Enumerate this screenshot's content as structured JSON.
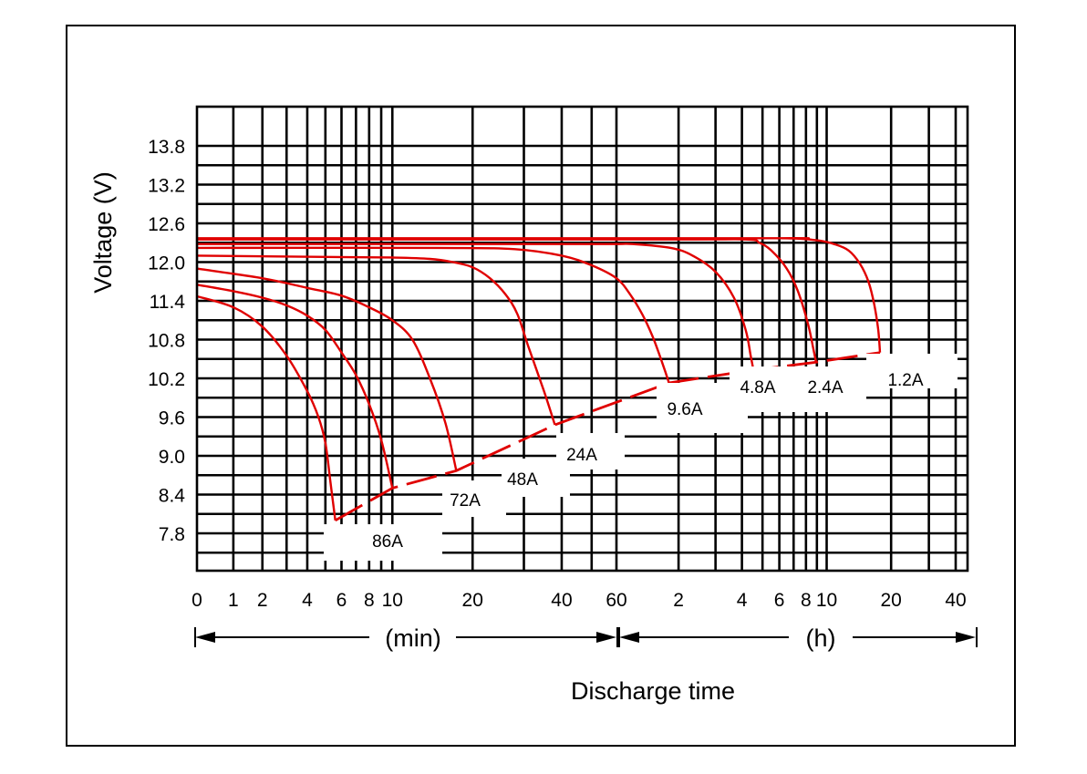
{
  "chart_data": {
    "type": "line",
    "ylabel": "Voltage (V)",
    "xlabel": "Discharge time",
    "y_ticks": [
      "13.8",
      "13.2",
      "12.6",
      "12.0",
      "11.4",
      "10.8",
      "10.2",
      "9.6",
      "9.0",
      "8.4",
      "7.8"
    ],
    "ylim": [
      7.2,
      14.2
    ],
    "x_ticks_min": [
      "0",
      "1",
      "2",
      "4",
      "6",
      "8",
      "10",
      "20",
      "40",
      "60"
    ],
    "x_ticks_h": [
      "2",
      "4",
      "6",
      "8",
      "10",
      "20",
      "40"
    ],
    "x_units": {
      "min": "(min)",
      "h": "(h)"
    },
    "x_scale": "log (minutes, shifted)",
    "grid": true,
    "series": [
      {
        "name": "86A",
        "x_min": [
          0,
          1,
          2,
          3,
          4,
          4.6,
          5,
          5.3,
          5.6
        ],
        "y": [
          11.47,
          11.3,
          11.0,
          10.55,
          10.0,
          9.6,
          9.2,
          8.6,
          8.0
        ]
      },
      {
        "name": "72A",
        "x_min": [
          0,
          1,
          2,
          3,
          4,
          5,
          6,
          7,
          8,
          9,
          10
        ],
        "y": [
          11.65,
          11.55,
          11.45,
          11.33,
          11.17,
          10.95,
          10.6,
          10.25,
          9.8,
          9.25,
          8.5
        ]
      },
      {
        "name": "48A",
        "x_min": [
          0,
          2,
          4,
          6,
          8,
          10,
          12,
          14,
          16,
          17.5
        ],
        "y": [
          11.9,
          11.75,
          11.6,
          11.48,
          11.3,
          11.1,
          10.8,
          10.2,
          9.5,
          8.77
        ]
      },
      {
        "name": "24A",
        "x_min": [
          0,
          5,
          10,
          14,
          17,
          20,
          23,
          26,
          28.5,
          31,
          35,
          38
        ],
        "y": [
          12.1,
          12.08,
          12.07,
          12.05,
          12.0,
          11.92,
          11.75,
          11.5,
          11.2,
          10.7,
          10.0,
          9.48
        ]
      },
      {
        "name": "9.6A",
        "x_min": [
          0,
          15,
          28,
          40,
          50,
          60,
          70,
          80,
          90,
          100,
          108
        ],
        "y": [
          12.22,
          12.22,
          12.2,
          12.1,
          11.95,
          11.75,
          11.5,
          11.2,
          10.85,
          10.45,
          10.13
        ]
      },
      {
        "name": "4.8A",
        "x_min": [
          0,
          40,
          60,
          72,
          110,
          140,
          180,
          220,
          250,
          264,
          272
        ],
        "y": [
          12.28,
          12.28,
          12.28,
          12.28,
          12.22,
          12.1,
          11.85,
          11.45,
          10.95,
          10.55,
          10.33
        ]
      },
      {
        "name": "2.4A",
        "x_min": [
          0,
          100,
          250,
          290,
          330,
          390,
          440,
          490,
          520,
          535
        ],
        "y": [
          12.35,
          12.35,
          12.35,
          12.3,
          12.18,
          11.9,
          11.55,
          11.05,
          10.65,
          10.45
        ]
      },
      {
        "name": "1.2A",
        "x_min": [
          0,
          300,
          360,
          460,
          560,
          650,
          760,
          860,
          940,
          1000,
          1045,
          1065
        ],
        "y": [
          12.37,
          12.37,
          12.37,
          12.36,
          12.33,
          12.28,
          12.18,
          11.97,
          11.7,
          11.35,
          10.95,
          10.6
        ]
      }
    ],
    "end_voltage_line": {
      "x_min": [
        5.6,
        10,
        17.5,
        38,
        108,
        272,
        535,
        1065
      ],
      "y": [
        8.0,
        8.5,
        8.77,
        9.48,
        10.13,
        10.33,
        10.45,
        10.6
      ]
    },
    "series_color": "#e00000"
  }
}
